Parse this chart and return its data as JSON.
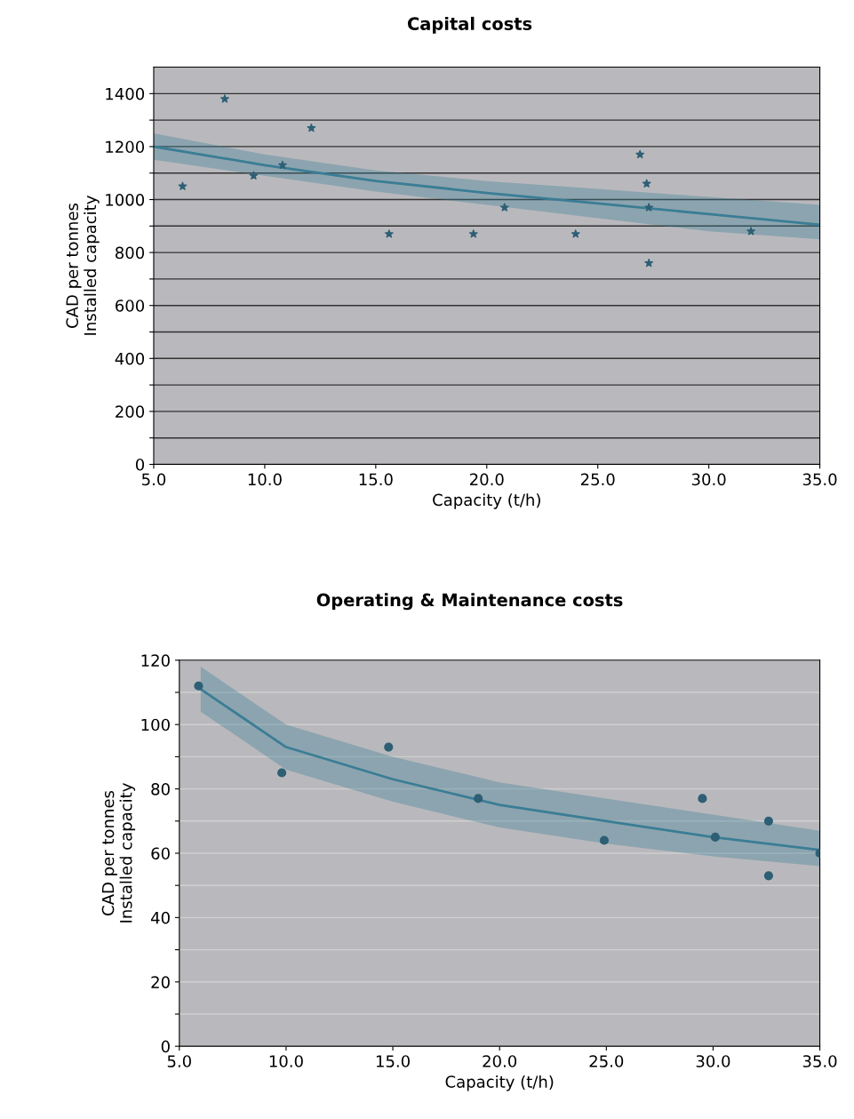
{
  "chart_data": [
    {
      "type": "scatter",
      "title": "Capital costs",
      "xlabel": "Capacity (t/h)",
      "ylabel": "CAD per tonnes\nInstalled capacity",
      "xlim": [
        5,
        35
      ],
      "ylim": [
        0,
        1500
      ],
      "xticks": [
        {
          "value": 5,
          "label": "5.0"
        },
        {
          "value": 10,
          "label": "10.0"
        },
        {
          "value": 15,
          "label": "15.0"
        },
        {
          "value": 20,
          "label": "20.0"
        },
        {
          "value": 25,
          "label": "25.0"
        },
        {
          "value": 30,
          "label": "30.0"
        },
        {
          "value": 35,
          "label": "35.0"
        }
      ],
      "yticks": [
        0,
        {
          "value": 100,
          "label": null
        },
        200,
        {
          "value": 300,
          "label": null
        },
        400,
        {
          "value": 500,
          "label": null
        },
        600,
        {
          "value": 700,
          "label": null
        },
        800,
        {
          "value": 900,
          "label": null
        },
        1000,
        {
          "value": 1100,
          "label": null
        },
        1200,
        {
          "value": 1300,
          "label": null
        },
        1400
      ],
      "grid": "y",
      "series": [
        {
          "type": "line",
          "marker": "none",
          "color": "#3a7d95",
          "x": [
            5,
            10,
            15,
            20,
            25,
            30,
            35
          ],
          "values": [
            1200,
            1130,
            1070,
            1025,
            985,
            945,
            905
          ],
          "lower": [
            1150,
            1090,
            1030,
            980,
            930,
            880,
            850
          ],
          "upper": [
            1250,
            1170,
            1110,
            1070,
            1040,
            1010,
            980
          ]
        },
        {
          "marker": "star",
          "color": "#2e5f75",
          "x": [
            6.3,
            8.2,
            9.5,
            10.8,
            12.1,
            15.6,
            19.4,
            20.8,
            24.0,
            26.9,
            27.2,
            27.3,
            27.3,
            31.9
          ],
          "values": [
            1050,
            1380,
            1090,
            1130,
            1270,
            870,
            870,
            970,
            870,
            1170,
            1060,
            970,
            760,
            880
          ]
        }
      ]
    },
    {
      "type": "scatter",
      "title": "Operating & Maintenance costs",
      "xlabel": "Capacity (t/h)",
      "ylabel": "CAD per tonnes\nInstalled capacity",
      "xlim": [
        5,
        35
      ],
      "ylim": [
        0,
        120
      ],
      "xticks": [
        {
          "value": 5,
          "label": "5.0"
        },
        {
          "value": 10,
          "label": "10.0"
        },
        {
          "value": 15,
          "label": "15.0"
        },
        {
          "value": 20,
          "label": "20.0"
        },
        {
          "value": 25,
          "label": "25.0"
        },
        {
          "value": 30,
          "label": "30.0"
        },
        {
          "value": 35,
          "label": "35.0"
        }
      ],
      "yticks": [
        0,
        {
          "value": 10,
          "label": null
        },
        20,
        {
          "value": 30,
          "label": null
        },
        40,
        {
          "value": 50,
          "label": null
        },
        60,
        {
          "value": 70,
          "label": null
        },
        80,
        {
          "value": 90,
          "label": null
        },
        100,
        {
          "value": 110,
          "label": null
        },
        120
      ],
      "grid": "y",
      "series": [
        {
          "type": "line",
          "marker": "none",
          "color": "#3a7d95",
          "x": [
            6,
            10,
            15,
            20,
            25,
            30,
            35
          ],
          "values": [
            111,
            93,
            83,
            75,
            70,
            65,
            61
          ],
          "lower": [
            104,
            86,
            76,
            68,
            63,
            59,
            56
          ],
          "upper": [
            118,
            100,
            90,
            82,
            77,
            72,
            67
          ]
        },
        {
          "marker": "circle",
          "color": "#2e5f75",
          "x": [
            5.9,
            9.8,
            14.8,
            19.0,
            24.9,
            29.5,
            30.1,
            32.6,
            32.6,
            35.0
          ],
          "values": [
            112,
            85,
            93,
            77,
            64,
            77,
            65,
            70,
            53,
            60
          ]
        }
      ]
    }
  ]
}
